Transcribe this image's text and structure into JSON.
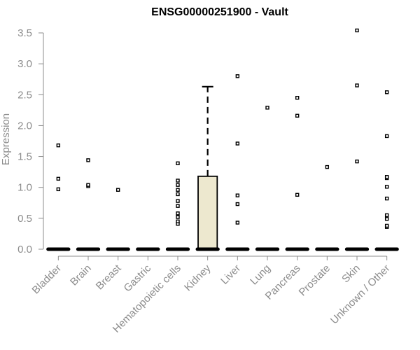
{
  "chart_data": {
    "type": "box",
    "title": "ENSG00000251900 - Vault",
    "xlabel": "",
    "ylabel": "Expression",
    "ylim": [
      0,
      3.5
    ],
    "yticks": [
      "0.0",
      "0.5",
      "1.0",
      "1.5",
      "2.0",
      "2.5",
      "3.0",
      "3.5"
    ],
    "grid": false,
    "box_color": "#ede8cf",
    "categories": [
      "Bladder",
      "Brain",
      "Breast",
      "Gastric",
      "Hematopoietic cells",
      "Kidney",
      "Liver",
      "Lung",
      "Pancreas",
      "Prostate",
      "Skin",
      "Unknown / Other"
    ],
    "boxes": [
      {
        "q1": 0,
        "median": 0,
        "q3": 0,
        "whisker_low": 0,
        "whisker_high": 0,
        "outliers": [
          0.97,
          1.14,
          1.68
        ]
      },
      {
        "q1": 0,
        "median": 0,
        "q3": 0,
        "whisker_low": 0,
        "whisker_high": 0,
        "outliers": [
          1.02,
          1.04,
          1.44
        ]
      },
      {
        "q1": 0,
        "median": 0,
        "q3": 0,
        "whisker_low": 0,
        "whisker_high": 0,
        "outliers": [
          0.96
        ]
      },
      {
        "q1": 0,
        "median": 0,
        "q3": 0,
        "whisker_low": 0,
        "whisker_high": 0,
        "outliers": []
      },
      {
        "q1": 0,
        "median": 0,
        "q3": 0,
        "whisker_low": 0,
        "whisker_high": 0,
        "outliers": [
          0.41,
          0.45,
          0.52,
          0.58,
          0.7,
          0.78,
          0.89,
          0.96,
          1.04,
          1.11,
          1.39
        ]
      },
      {
        "q1": 0,
        "median": 0,
        "q3": 1.18,
        "whisker_low": 0,
        "whisker_high": 2.63,
        "outliers": []
      },
      {
        "q1": 0,
        "median": 0,
        "q3": 0,
        "whisker_low": 0,
        "whisker_high": 0,
        "outliers": [
          0.43,
          0.73,
          0.87,
          1.71,
          2.8
        ]
      },
      {
        "q1": 0,
        "median": 0,
        "q3": 0,
        "whisker_low": 0,
        "whisker_high": 0,
        "outliers": [
          2.29
        ]
      },
      {
        "q1": 0,
        "median": 0,
        "q3": 0,
        "whisker_low": 0,
        "whisker_high": 0,
        "outliers": [
          0.88,
          2.16,
          2.45
        ]
      },
      {
        "q1": 0,
        "median": 0,
        "q3": 0,
        "whisker_low": 0,
        "whisker_high": 0,
        "outliers": [
          1.33
        ]
      },
      {
        "q1": 0,
        "median": 0,
        "q3": 0,
        "whisker_low": 0,
        "whisker_high": 0,
        "outliers": [
          1.42,
          2.65,
          3.54
        ]
      },
      {
        "q1": 0,
        "median": 0,
        "q3": 0,
        "whisker_low": 0,
        "whisker_high": 0,
        "outliers": [
          0.36,
          0.38,
          0.49,
          0.55,
          0.82,
          1.01,
          1.15,
          1.17,
          1.83,
          2.54
        ]
      }
    ]
  }
}
